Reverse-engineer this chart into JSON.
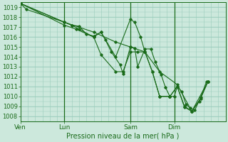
{
  "bg_color": "#cce8dc",
  "grid_color": "#99ccbb",
  "line_color": "#1a6b1a",
  "marker_color": "#1a6b1a",
  "xlabel": "Pression niveau de la mer( hPa )",
  "ylim": [
    1007.5,
    1019.5
  ],
  "yticks": [
    1008,
    1009,
    1010,
    1011,
    1012,
    1013,
    1014,
    1015,
    1016,
    1017,
    1018,
    1019
  ],
  "day_positions": [
    0.0,
    3.0,
    7.5,
    10.5
  ],
  "day_labels": [
    "Ven",
    "Lun",
    "Sam",
    "Dim"
  ],
  "xlim": [
    0,
    14
  ],
  "series": [
    [
      [
        0.0,
        1019.4
      ],
      [
        0.4,
        1018.8
      ],
      [
        3.0,
        1017.5
      ],
      [
        3.5,
        1017.2
      ],
      [
        4.0,
        1017.1
      ],
      [
        4.5,
        1016.3
      ],
      [
        5.0,
        1016.1
      ],
      [
        5.5,
        1016.5
      ],
      [
        5.8,
        1015.7
      ],
      [
        6.2,
        1014.5
      ],
      [
        6.8,
        1013.2
      ],
      [
        7.0,
        1012.3
      ],
      [
        7.5,
        1015.0
      ],
      [
        7.8,
        1014.9
      ],
      [
        8.0,
        1013.0
      ],
      [
        8.5,
        1014.8
      ],
      [
        8.9,
        1014.8
      ],
      [
        9.2,
        1013.5
      ],
      [
        9.6,
        1012.2
      ],
      [
        9.9,
        1010.9
      ],
      [
        10.2,
        1010.0
      ],
      [
        10.5,
        1010.0
      ],
      [
        10.7,
        1011.0
      ],
      [
        11.0,
        1010.5
      ],
      [
        11.3,
        1009.2
      ],
      [
        11.6,
        1008.8
      ],
      [
        11.9,
        1008.6
      ],
      [
        12.3,
        1009.9
      ],
      [
        12.7,
        1011.5
      ]
    ],
    [
      [
        0.0,
        1019.4
      ],
      [
        3.0,
        1017.5
      ],
      [
        3.5,
        1017.2
      ],
      [
        4.0,
        1016.8
      ],
      [
        5.0,
        1016.0
      ],
      [
        5.5,
        1016.5
      ],
      [
        6.5,
        1014.0
      ],
      [
        7.5,
        1017.8
      ],
      [
        7.8,
        1017.5
      ],
      [
        8.2,
        1016.0
      ],
      [
        8.5,
        1014.5
      ],
      [
        9.0,
        1012.5
      ],
      [
        9.5,
        1010.0
      ],
      [
        10.2,
        1010.0
      ],
      [
        10.7,
        1011.0
      ],
      [
        11.2,
        1009.0
      ],
      [
        11.7,
        1008.5
      ],
      [
        12.3,
        1009.8
      ],
      [
        12.8,
        1011.5
      ]
    ],
    [
      [
        0.0,
        1019.4
      ],
      [
        3.0,
        1017.2
      ],
      [
        3.8,
        1016.8
      ],
      [
        5.0,
        1016.0
      ],
      [
        5.5,
        1014.2
      ],
      [
        6.5,
        1012.5
      ],
      [
        7.0,
        1012.5
      ],
      [
        7.5,
        1014.5
      ],
      [
        8.0,
        1014.5
      ],
      [
        8.5,
        1014.5
      ],
      [
        9.0,
        1012.5
      ],
      [
        9.5,
        1010.0
      ],
      [
        10.2,
        1010.0
      ],
      [
        10.7,
        1011.0
      ],
      [
        11.2,
        1008.9
      ],
      [
        11.7,
        1008.5
      ],
      [
        12.2,
        1009.5
      ],
      [
        12.8,
        1011.5
      ]
    ],
    [
      [
        0.0,
        1019.4
      ],
      [
        3.0,
        1017.5
      ],
      [
        5.0,
        1016.5
      ],
      [
        6.5,
        1015.5
      ],
      [
        7.5,
        1015.0
      ],
      [
        8.5,
        1014.5
      ],
      [
        9.5,
        1012.5
      ],
      [
        10.7,
        1011.2
      ],
      [
        11.7,
        1008.5
      ],
      [
        12.8,
        1011.5
      ]
    ]
  ]
}
